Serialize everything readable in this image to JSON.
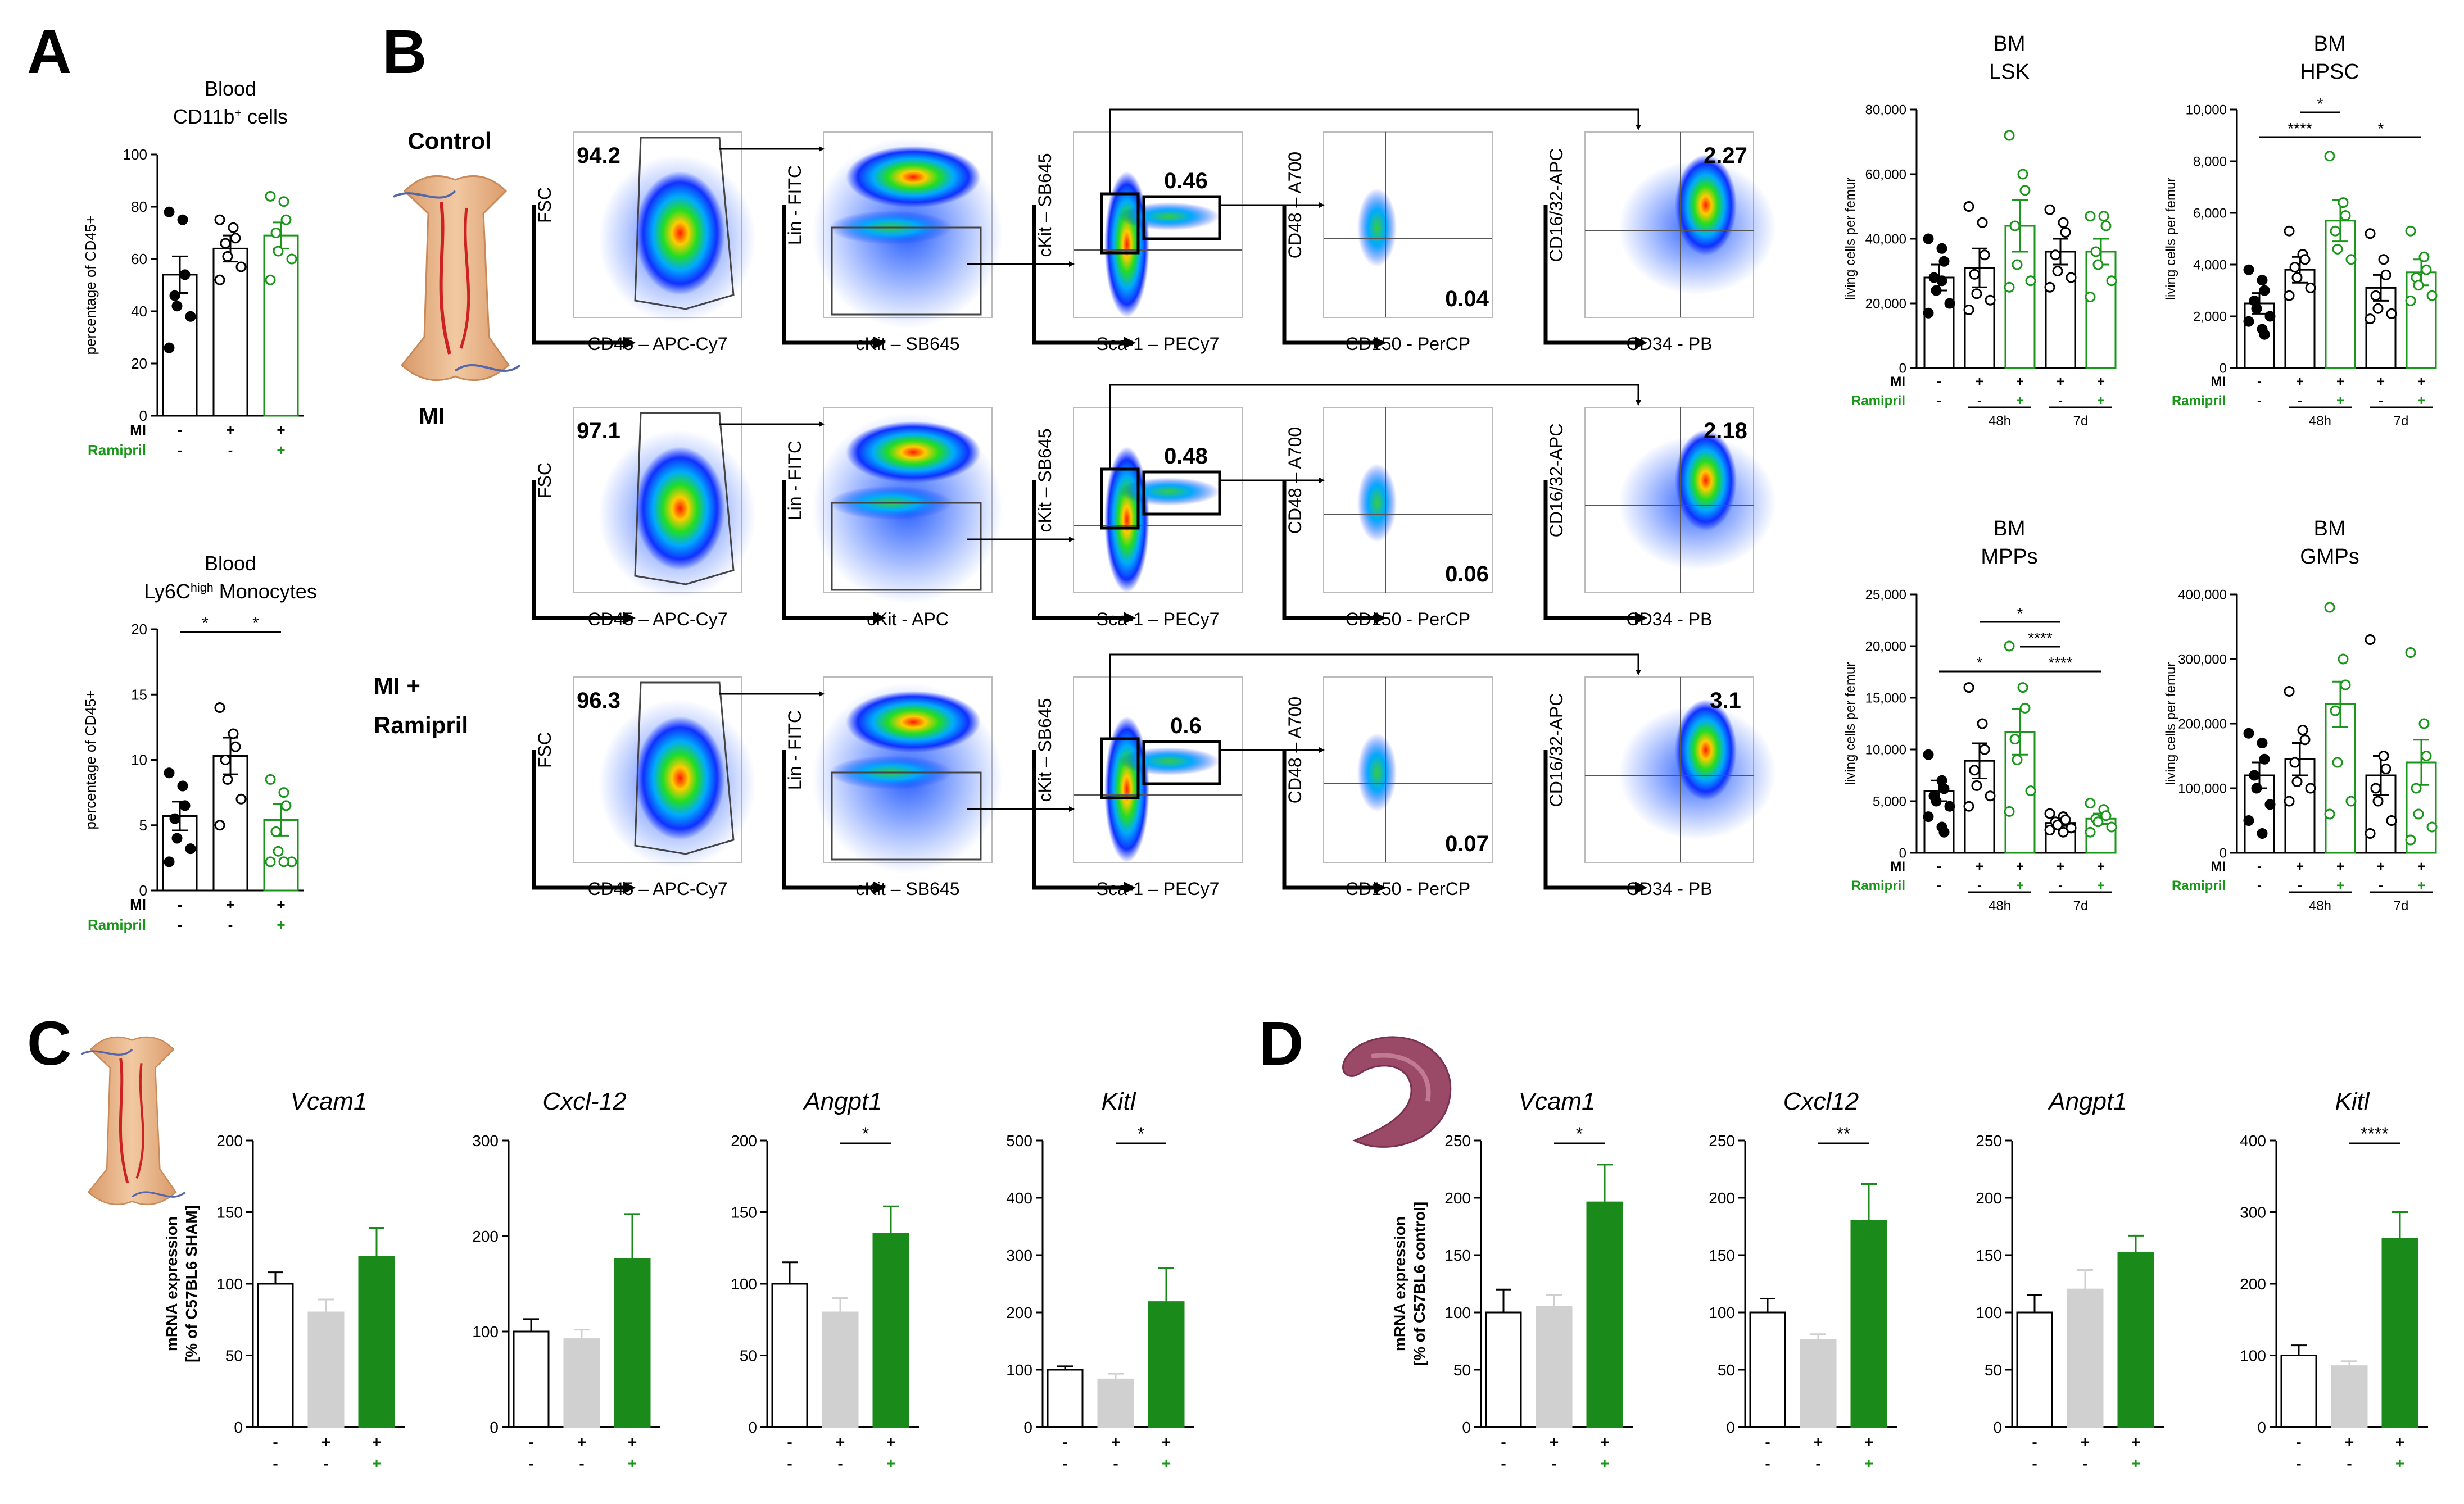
{
  "panels": {
    "A": {
      "label": "A"
    },
    "B": {
      "label": "B"
    },
    "C": {
      "label": "C"
    },
    "D": {
      "label": "D"
    }
  },
  "colors": {
    "green": "#1a961a",
    "darkgreen": "#1a8a1a",
    "grey": "#d0d0d0",
    "black": "#000000"
  },
  "groups": {
    "mi": "MI",
    "ramipril": "Ramipril",
    "plus": "+",
    "minus": "-",
    "h48": "48h",
    "d7": "7d"
  },
  "flow": {
    "rows": [
      {
        "label": "Control",
        "pct_cd45": "94.2",
        "pct_lsk": "0.46",
        "pct_hpsc": "0.04",
        "pct_gmp": "2.27",
        "x_ckit_label": "cKit – SB645"
      },
      {
        "label": "MI",
        "pct_cd45": "97.1",
        "pct_lsk": "0.48",
        "pct_hpsc": "0.06",
        "pct_gmp": "2.18",
        "x_ckit_label": "cKit - APC"
      },
      {
        "label": "MI +",
        "label2": "Ramipril",
        "pct_cd45": "96.3",
        "pct_lsk": "0.6",
        "pct_hpsc": "0.07",
        "pct_gmp": "3.1",
        "x_ckit_label": "cKit – SB645"
      }
    ],
    "axes": {
      "fsc": "FSC",
      "cd45": "CD45 – APC-Cy7",
      "lin": "Lin - FITC",
      "ckit_y": "cKit – SB645",
      "sca1": "Sca-1 – PECy7",
      "cd48": "CD48 – A700",
      "cd150": "CD150 - PerCP",
      "cd1632": "CD16/32-APC",
      "cd34": "CD34 - PB"
    }
  },
  "chart_data": [
    {
      "id": "A1",
      "type": "bar",
      "title": "Blood",
      "title2": "CD11b",
      "title_sup": "+",
      "title_post": " cells",
      "ylabel": "percentage of CD45+",
      "ylim": [
        0,
        100
      ],
      "yticks": [
        "0",
        "20",
        "40",
        "60",
        "80",
        "100"
      ],
      "categories": [
        "Control",
        "MI",
        "MI+Ramipril"
      ],
      "values": [
        54,
        64,
        69
      ],
      "errors": [
        7,
        5,
        5
      ],
      "points": [
        [
          78,
          75,
          54,
          46,
          42,
          38,
          26
        ],
        [
          75,
          72,
          68,
          66,
          61,
          57,
          52
        ],
        [
          84,
          82,
          75,
          70,
          63,
          60,
          52
        ]
      ],
      "mi": [
        "-",
        "+",
        "+"
      ],
      "ram": [
        "-",
        "-",
        "+"
      ],
      "sig": []
    },
    {
      "id": "A2",
      "type": "bar",
      "title": "Blood",
      "title2": "Ly6C",
      "title_sup": "high",
      "title_post": " Monocytes",
      "ylabel": "percentage of CD45+",
      "ylim": [
        0,
        20
      ],
      "yticks": [
        "0",
        "5",
        "10",
        "15",
        "20"
      ],
      "categories": [
        "Control",
        "MI",
        "MI+Ramipril"
      ],
      "values": [
        5.7,
        10.3,
        5.4
      ],
      "errors": [
        1.1,
        1.4,
        1.2
      ],
      "points": [
        [
          9,
          8,
          6.5,
          5.5,
          4,
          3.2,
          2.2
        ],
        [
          14,
          12,
          11,
          10,
          8.5,
          7,
          5
        ],
        [
          8.5,
          7.5,
          6.5,
          4.5,
          3,
          2.2,
          2.2,
          2.2
        ]
      ],
      "mi": [
        "-",
        "+",
        "+"
      ],
      "ram": [
        "-",
        "-",
        "+"
      ],
      "sig": [
        {
          "from": 0,
          "to": 1,
          "level": 0,
          "label": "*"
        },
        {
          "from": 1,
          "to": 2,
          "level": 0,
          "label": "*"
        }
      ]
    },
    {
      "id": "B1",
      "type": "bar",
      "title": "BM",
      "title2": "LSK",
      "ylabel": "living cells per femur",
      "ylim": [
        0,
        80000
      ],
      "yticks": [
        "0",
        "20,000",
        "40,000",
        "60,000",
        "80,000"
      ],
      "categories": [
        "Control",
        "MI 48h",
        "MI+Ram 48h",
        "MI 7d",
        "MI+Ram 7d"
      ],
      "values": [
        28000,
        31000,
        44000,
        36000,
        36000
      ],
      "errors": [
        4000,
        6000,
        8000,
        4000,
        4000
      ],
      "points": [
        [
          40000,
          37000,
          33000,
          28000,
          24000,
          20000,
          17000,
          27000
        ],
        [
          50000,
          45000,
          35000,
          29000,
          23000,
          21000,
          18000
        ],
        [
          72000,
          60000,
          55000,
          44000,
          32000,
          27000,
          25000
        ],
        [
          49000,
          45000,
          42000,
          35000,
          30000,
          28000,
          25000
        ],
        [
          47000,
          47000,
          44000,
          36000,
          32000,
          27000,
          22000
        ]
      ],
      "mi": [
        "-",
        "+",
        "+",
        "+",
        "+"
      ],
      "ram": [
        "-",
        "-",
        "+",
        "-",
        "+"
      ],
      "sig": []
    },
    {
      "id": "B2",
      "type": "bar",
      "title": "BM",
      "title2": "HPSC",
      "ylabel": "living cells per femur",
      "ylim": [
        0,
        10000
      ],
      "yticks": [
        "0",
        "2,000",
        "4,000",
        "6,000",
        "8,000",
        "10,000"
      ],
      "categories": [
        "Control",
        "MI 48h",
        "MI+Ram 48h",
        "MI 7d",
        "MI+Ram 7d"
      ],
      "values": [
        2500,
        3800,
        5700,
        3100,
        3700
      ],
      "errors": [
        400,
        500,
        800,
        500,
        500
      ],
      "points": [
        [
          3800,
          3400,
          3000,
          2600,
          2300,
          2000,
          1800,
          1500,
          1300
        ],
        [
          5300,
          4400,
          4200,
          3900,
          3500,
          3100,
          2800
        ],
        [
          8200,
          6400,
          5900,
          5300,
          4600,
          4200
        ],
        [
          5200,
          4200,
          3600,
          2800,
          2300,
          2100,
          1900
        ],
        [
          5300,
          4300,
          3800,
          3500,
          3200,
          2800,
          2600
        ]
      ],
      "mi": [
        "-",
        "+",
        "+",
        "+",
        "+"
      ],
      "ram": [
        "-",
        "-",
        "+",
        "-",
        "+"
      ],
      "sig": [
        {
          "from": 0,
          "to": 2,
          "level": 1,
          "label": "****"
        },
        {
          "from": 1,
          "to": 2,
          "level": 0,
          "label": "*"
        },
        {
          "from": 2,
          "to": 4,
          "level": 1,
          "label": "*"
        }
      ]
    },
    {
      "id": "B3",
      "type": "bar",
      "title": "BM",
      "title2": "MPPs",
      "ylabel": "living cells per femur",
      "ylim": [
        0,
        25000
      ],
      "yticks": [
        "0",
        "5,000",
        "10,000",
        "15,000",
        "20,000",
        "25,000"
      ],
      "categories": [
        "Control",
        "MI 48h",
        "MI+Ram 48h",
        "MI 7d",
        "MI+Ram 7d"
      ],
      "values": [
        6000,
        8900,
        11700,
        2900,
        3300
      ],
      "errors": [
        1000,
        1700,
        2200,
        300,
        500
      ],
      "points": [
        [
          9500,
          7000,
          6200,
          5500,
          5000,
          4500,
          3500,
          2500,
          2000
        ],
        [
          16000,
          12500,
          10000,
          8000,
          6500,
          5500,
          4500
        ],
        [
          20000,
          16000,
          14000,
          11000,
          9000,
          6000,
          4000
        ],
        [
          3800,
          3500,
          3200,
          3000,
          2700,
          2400,
          2200,
          2000
        ],
        [
          4800,
          4200,
          3600,
          3300,
          3000,
          2500,
          2000
        ]
      ],
      "mi": [
        "-",
        "+",
        "+",
        "+",
        "+"
      ],
      "ram": [
        "-",
        "-",
        "+",
        "-",
        "+"
      ],
      "sig": [
        {
          "from": 0,
          "to": 2,
          "level": 3,
          "label": "*"
        },
        {
          "from": 2,
          "to": 4,
          "level": 3,
          "label": "****"
        },
        {
          "from": 2,
          "to": 3,
          "level": 2,
          "label": "****"
        },
        {
          "from": 1,
          "to": 3,
          "level": 1,
          "label": "*"
        }
      ]
    },
    {
      "id": "B4",
      "type": "bar",
      "title": "BM",
      "title2": "GMPs",
      "ylabel": "living cells per femur",
      "ylim": [
        0,
        400000
      ],
      "yticks": [
        "0",
        "100,000",
        "200,000",
        "300,000",
        "400,000"
      ],
      "categories": [
        "Control",
        "MI 48h",
        "MI+Ram 48h",
        "MI 7d",
        "MI+Ram 7d"
      ],
      "values": [
        120000,
        145000,
        230000,
        120000,
        140000
      ],
      "errors": [
        20000,
        25000,
        35000,
        30000,
        35000
      ],
      "points": [
        [
          185000,
          170000,
          145000,
          120000,
          100000,
          75000,
          50000,
          30000
        ],
        [
          250000,
          190000,
          175000,
          140000,
          110000,
          100000,
          80000
        ],
        [
          380000,
          300000,
          260000,
          220000,
          140000,
          80000,
          60000
        ],
        [
          330000,
          150000,
          130000,
          100000,
          80000,
          50000,
          30000
        ],
        [
          310000,
          200000,
          150000,
          100000,
          60000,
          40000,
          20000
        ]
      ],
      "mi": [
        "-",
        "+",
        "+",
        "+",
        "+"
      ],
      "ram": [
        "-",
        "-",
        "+",
        "-",
        "+"
      ],
      "sig": []
    },
    {
      "id": "C1",
      "type": "bar",
      "title": "Vcam1",
      "italic": true,
      "ylabel": "mRNA expression",
      "ylabel2": "[% of C57BL6 SHAM]",
      "ylim": [
        0,
        200
      ],
      "yticks": [
        "0",
        "50",
        "100",
        "150",
        "200"
      ],
      "categories": [
        "Control",
        "MI",
        "MI+Ramipril"
      ],
      "values": [
        100,
        80,
        119
      ],
      "errors": [
        8,
        9,
        20
      ],
      "mi": [
        "-",
        "+",
        "+"
      ],
      "ram": [
        "-",
        "-",
        "+"
      ],
      "sig": []
    },
    {
      "id": "C2",
      "type": "bar",
      "title": "Cxcl-12",
      "italic": true,
      "ylim": [
        0,
        300
      ],
      "yticks": [
        "0",
        "100",
        "200",
        "300"
      ],
      "categories": [
        "Control",
        "MI",
        "MI+Ramipril"
      ],
      "values": [
        100,
        92,
        176
      ],
      "errors": [
        13,
        10,
        47
      ],
      "mi": [
        "-",
        "+",
        "+"
      ],
      "ram": [
        "-",
        "-",
        "+"
      ],
      "sig": []
    },
    {
      "id": "C3",
      "type": "bar",
      "title": "Angpt1",
      "italic": true,
      "ylim": [
        0,
        200
      ],
      "yticks": [
        "0",
        "50",
        "100",
        "150",
        "200"
      ],
      "categories": [
        "Control",
        "MI",
        "MI+Ramipril"
      ],
      "values": [
        100,
        80,
        135
      ],
      "errors": [
        15,
        10,
        19
      ],
      "mi": [
        "-",
        "+",
        "+"
      ],
      "ram": [
        "-",
        "-",
        "+"
      ],
      "sig": [
        {
          "from": 1,
          "to": 2,
          "level": 0,
          "label": "*"
        }
      ]
    },
    {
      "id": "C4",
      "type": "bar",
      "title": "Kitl",
      "italic": true,
      "ylim": [
        0,
        500
      ],
      "yticks": [
        "0",
        "100",
        "200",
        "300",
        "400",
        "500"
      ],
      "categories": [
        "Control",
        "MI",
        "MI+Ramipril"
      ],
      "values": [
        100,
        83,
        218
      ],
      "errors": [
        6,
        10,
        60
      ],
      "mi": [
        "-",
        "+",
        "+"
      ],
      "ram": [
        "-",
        "-",
        "+"
      ],
      "sig": [
        {
          "from": 1,
          "to": 2,
          "level": 0,
          "label": "*"
        }
      ]
    },
    {
      "id": "D1",
      "type": "bar",
      "title": "Vcam1",
      "italic": true,
      "ylabel": "mRNA expression",
      "ylabel2": "[% of C57BL6 control]",
      "ylim": [
        0,
        250
      ],
      "yticks": [
        "0",
        "50",
        "100",
        "150",
        "200",
        "250"
      ],
      "categories": [
        "Control",
        "MI",
        "MI+Ramipril"
      ],
      "values": [
        100,
        105,
        196
      ],
      "errors": [
        20,
        10,
        33
      ],
      "mi": [
        "-",
        "+",
        "+"
      ],
      "ram": [
        "-",
        "-",
        "+"
      ],
      "sig": [
        {
          "from": 1,
          "to": 2,
          "level": 0,
          "label": "*"
        }
      ]
    },
    {
      "id": "D2",
      "type": "bar",
      "title": "Cxcl12",
      "italic": true,
      "ylim": [
        0,
        250
      ],
      "yticks": [
        "0",
        "50",
        "100",
        "150",
        "200",
        "250"
      ],
      "categories": [
        "Control",
        "MI",
        "MI+Ramipril"
      ],
      "values": [
        100,
        76,
        180
      ],
      "errors": [
        12,
        5,
        32
      ],
      "mi": [
        "-",
        "+",
        "+"
      ],
      "ram": [
        "-",
        "-",
        "+"
      ],
      "sig": [
        {
          "from": 1,
          "to": 2,
          "level": 0,
          "label": "**"
        }
      ]
    },
    {
      "id": "D3",
      "type": "bar",
      "title": "Angpt1",
      "italic": true,
      "ylim": [
        0,
        250
      ],
      "yticks": [
        "0",
        "50",
        "100",
        "150",
        "200",
        "250"
      ],
      "categories": [
        "Control",
        "MI",
        "MI+Ramipril"
      ],
      "values": [
        100,
        120,
        152
      ],
      "errors": [
        15,
        17,
        15
      ],
      "mi": [
        "-",
        "+",
        "+"
      ],
      "ram": [
        "-",
        "-",
        "+"
      ],
      "sig": []
    },
    {
      "id": "D4",
      "type": "bar",
      "title": "Kitl",
      "italic": true,
      "ylim": [
        0,
        400
      ],
      "yticks": [
        "0",
        "100",
        "200",
        "300",
        "400"
      ],
      "categories": [
        "Control",
        "MI",
        "MI+Ramipril"
      ],
      "values": [
        100,
        85,
        263
      ],
      "errors": [
        14,
        7,
        37
      ],
      "mi": [
        "-",
        "+",
        "+"
      ],
      "ram": [
        "-",
        "-",
        "+"
      ],
      "sig": [
        {
          "from": 1,
          "to": 2,
          "level": 0,
          "label": "****"
        }
      ]
    }
  ]
}
